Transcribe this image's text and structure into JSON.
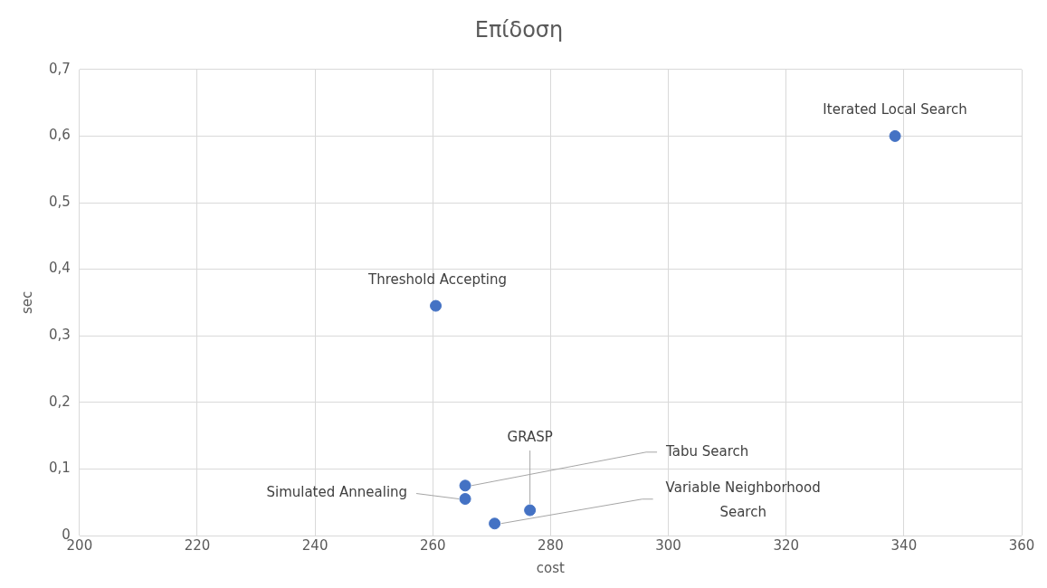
{
  "chart_data": {
    "type": "scatter",
    "title": "Επίδοση",
    "xlabel": "cost",
    "ylabel": "sec",
    "x": [
      338.5,
      260.5,
      265.5,
      265.5,
      270.5,
      276.5
    ],
    "series": [
      {
        "color": "#4472c4",
        "values": [
          0.6,
          0.345,
          0.075,
          0.055,
          0.018,
          0.038
        ]
      }
    ],
    "annotations": [
      {
        "text": "Iterated Local Search",
        "x": 338.5,
        "y": 0.6
      },
      {
        "text": "Threshold Accepting",
        "x": 260.5,
        "y": 0.345
      },
      {
        "text": "Tabu Search",
        "x": 265.5,
        "y": 0.075
      },
      {
        "text": "Simulated Annealing",
        "x": 265.5,
        "y": 0.055
      },
      {
        "text": "Variable Neighborhood Search",
        "x": 270.5,
        "y": 0.018
      },
      {
        "text": "GRASP",
        "x": 276.5,
        "y": 0.038
      }
    ],
    "xlim": [
      200,
      360
    ],
    "xticks": [
      200,
      220,
      240,
      260,
      280,
      300,
      320,
      340,
      360
    ],
    "ylim": [
      0,
      0.7
    ],
    "yticks": [
      0,
      {
        "value": 0.1,
        "label": "0,1"
      },
      {
        "value": 0.2,
        "label": "0,2"
      },
      {
        "value": 0.3,
        "label": "0,3"
      },
      {
        "value": 0.4,
        "label": "0,4"
      },
      {
        "value": 0.5,
        "label": "0,5"
      },
      {
        "value": 0.6,
        "label": "0,6"
      },
      {
        "value": 0.7,
        "label": "0,7"
      }
    ],
    "grid": true,
    "legend": false,
    "marker": "circle"
  }
}
